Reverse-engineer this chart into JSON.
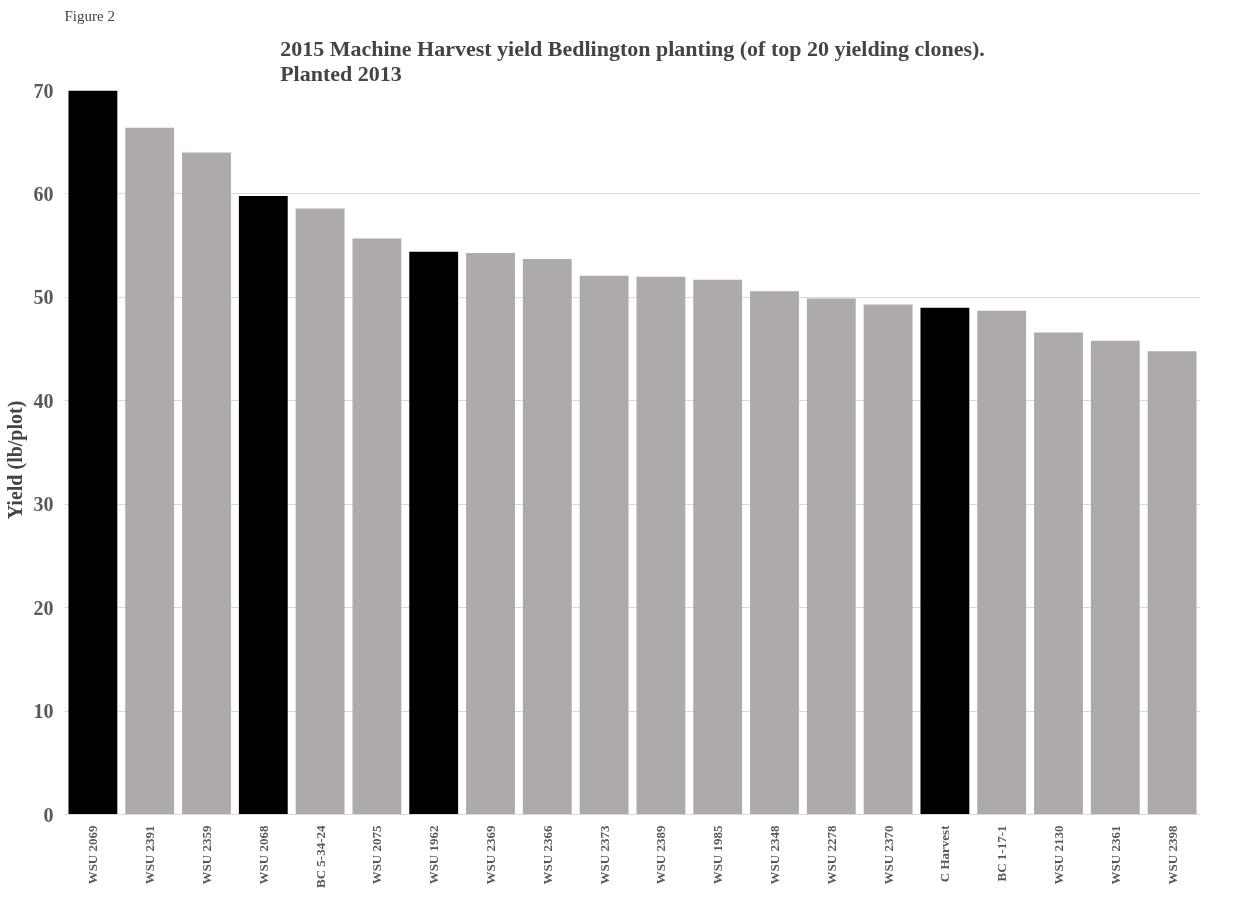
{
  "chart_data": {
    "type": "bar",
    "title": "2015 Machine Harvest yield Bedlington planting (of top 20 yielding clones).\nPlanted 2013",
    "ylabel": "Yield    (lb/plot)",
    "annotations": [
      "Figure 2"
    ],
    "categories": [
      "WSU 2069",
      "WSU 2391",
      "WSU 2359",
      "WSU 2068",
      "BC 5-34-24",
      "WSU 2075",
      "WSU 1962",
      "WSU 2369",
      "WSU 2366",
      "WSU 2373",
      "WSU 2389",
      "WSU 1985",
      "WSU 2348",
      "WSU 2278",
      "WSU 2370",
      "C Harvest",
      "BC 1-17-1",
      "WSU 2130",
      "WSU 2361",
      "WSU 2398"
    ],
    "values": [
      70,
      66.4,
      64.0,
      59.8,
      58.6,
      55.7,
      54.4,
      54.3,
      53.7,
      52.1,
      52.0,
      51.7,
      50.6,
      49.9,
      49.3,
      49.0,
      48.7,
      46.6,
      45.8,
      44.8
    ],
    "colors": [
      "#000000",
      "#aeaaaa",
      "#aeaaaa",
      "#000000",
      "#aeaaaa",
      "#aeaaaa",
      "#000000",
      "#aeaaaa",
      "#aeaaaa",
      "#aeaaaa",
      "#aeaaaa",
      "#aeaaaa",
      "#aeaaaa",
      "#aeaaaa",
      "#aeaaaa",
      "#000000",
      "#aeaaaa",
      "#aeaaaa",
      "#aeaaaa",
      "#aeaaaa"
    ],
    "ylim": [
      0,
      70
    ],
    "yticks": [
      0,
      10,
      20,
      30,
      40,
      50,
      60,
      70
    ],
    "grid": "y"
  }
}
